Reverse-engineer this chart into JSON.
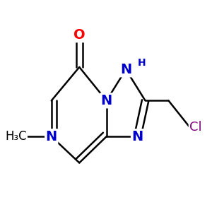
{
  "background_color": "#ffffff",
  "bond_color": "#000000",
  "bond_width": 1.8,
  "atom_labels": {
    "O": {
      "label": "O",
      "color": "#ff0000",
      "fontsize": 14,
      "fontweight": "bold"
    },
    "N1": {
      "label": "N",
      "color": "#0000cc",
      "fontsize": 14,
      "fontweight": "bold"
    },
    "N2": {
      "label": "N",
      "color": "#0000cc",
      "fontsize": 14,
      "fontweight": "bold"
    },
    "N3": {
      "label": "N",
      "color": "#0000cc",
      "fontsize": 14,
      "fontweight": "bold"
    },
    "N4": {
      "label": "N",
      "color": "#0000cc",
      "fontsize": 14,
      "fontweight": "bold"
    },
    "Cl": {
      "label": "Cl",
      "color": "#800080",
      "fontsize": 13,
      "fontweight": "normal"
    },
    "Me": {
      "label": "H₃C",
      "color": "#000000",
      "fontsize": 12,
      "fontweight": "normal"
    }
  },
  "xlim": [
    -0.1,
    1.1
  ],
  "ylim": [
    -0.1,
    1.1
  ]
}
